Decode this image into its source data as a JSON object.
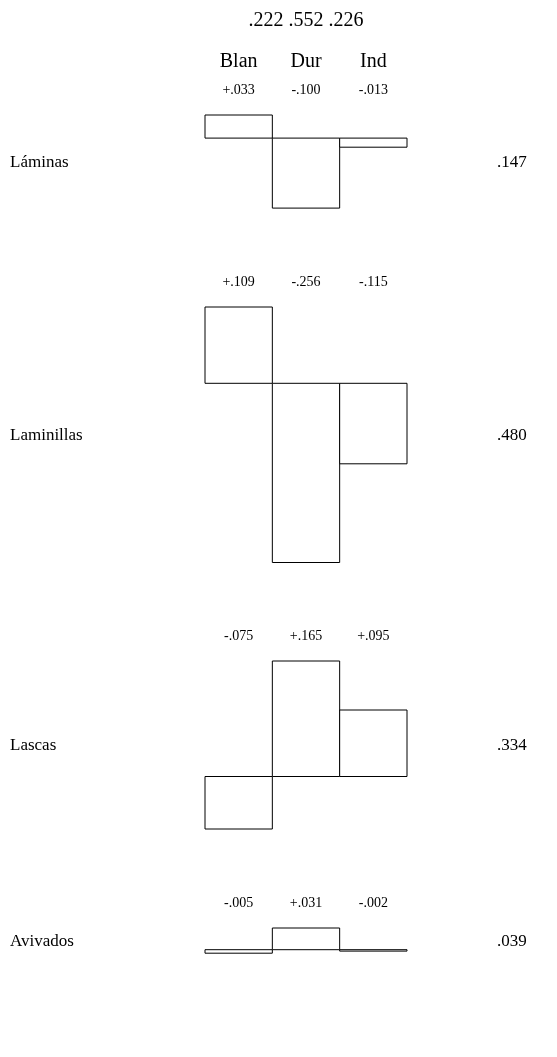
{
  "chart_data": [
    {
      "type": "bar",
      "ylabel": "Láminas",
      "categories": [
        "Blan",
        "Dur",
        "Ind"
      ],
      "values": [
        0.033,
        -0.1,
        -0.013
      ],
      "value_labels": [
        "+.033",
        "-.100",
        "-.013"
      ],
      "tick_labels": "x",
      "annotations": [
        ".222  .552  .226",
        ".147"
      ]
    },
    {
      "type": "bar",
      "ylabel": "Laminillas",
      "categories": [
        null,
        null,
        null
      ],
      "values": [
        0.109,
        -0.256,
        -0.115
      ],
      "value_labels": [
        "+.109",
        "-.256",
        "-.115"
      ],
      "tick_labels": false,
      "annotations": [
        ".480"
      ]
    },
    {
      "type": "bar",
      "ylabel": "Lascas",
      "categories": [
        null,
        null,
        null
      ],
      "values": [
        -0.075,
        0.165,
        0.095
      ],
      "value_labels": [
        "-.075",
        "+.165",
        "+.095"
      ],
      "tick_labels": false,
      "annotations": [
        ".334"
      ]
    },
    {
      "type": "bar",
      "ylabel": "Avivados",
      "categories": [
        null,
        null,
        null
      ],
      "values": [
        -0.005,
        0.031,
        -0.002
      ],
      "value_labels": [
        "-.005",
        "+.031",
        "-.002"
      ],
      "tick_labels": false,
      "annotations": [
        ".039"
      ]
    }
  ]
}
